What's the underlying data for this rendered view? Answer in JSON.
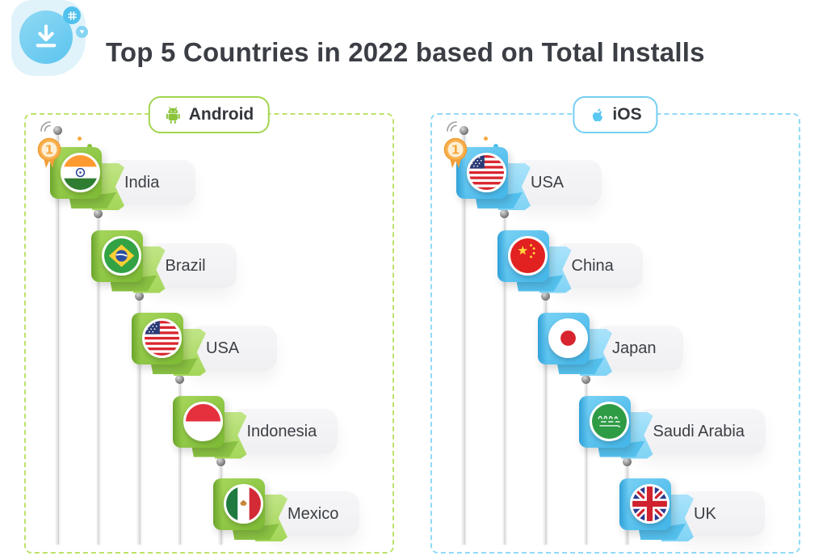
{
  "header": {
    "title": "Top 5 Countries in 2022 based on Total Installs",
    "icon": "download-icon"
  },
  "panels": [
    {
      "id": "android",
      "label": "Android",
      "icon": "android-icon",
      "rank_badge": "1",
      "colors": {
        "flag_light": "#A8D85E",
        "flag_dark": "#7CBA33",
        "wrap": "#6BA42B",
        "ribbon_light": "#C0E586",
        "ribbon_dark": "#A4D659",
        "fold": "#8AC243",
        "accent": "#8DC63F",
        "border": "#BDE269",
        "pill_border": "#A2D54E"
      },
      "countries": [
        {
          "name": "India",
          "flag": "india"
        },
        {
          "name": "Brazil",
          "flag": "brazil"
        },
        {
          "name": "USA",
          "flag": "usa"
        },
        {
          "name": "Indonesia",
          "flag": "indonesia"
        },
        {
          "name": "Mexico",
          "flag": "mexico"
        }
      ]
    },
    {
      "id": "ios",
      "label": "iOS",
      "icon": "apple-icon",
      "rank_badge": "1",
      "colors": {
        "flag_light": "#7BD3F5",
        "flag_dark": "#42B5E9",
        "wrap": "#2FA0D8",
        "ribbon_light": "#AAE3FA",
        "ribbon_dark": "#80D3F5",
        "fold": "#54C0ED",
        "accent": "#4FC1EE",
        "border": "#90DAF6",
        "pill_border": "#74CEF2"
      },
      "countries": [
        {
          "name": "USA",
          "flag": "usa"
        },
        {
          "name": "China",
          "flag": "china"
        },
        {
          "name": "Japan",
          "flag": "japan"
        },
        {
          "name": "Saudi Arabia",
          "flag": "saudi-arabia"
        },
        {
          "name": "UK",
          "flag": "uk"
        }
      ]
    }
  ],
  "decor": {
    "medal_color": "#F5A93E",
    "wave_color": "#9b9b9b"
  }
}
